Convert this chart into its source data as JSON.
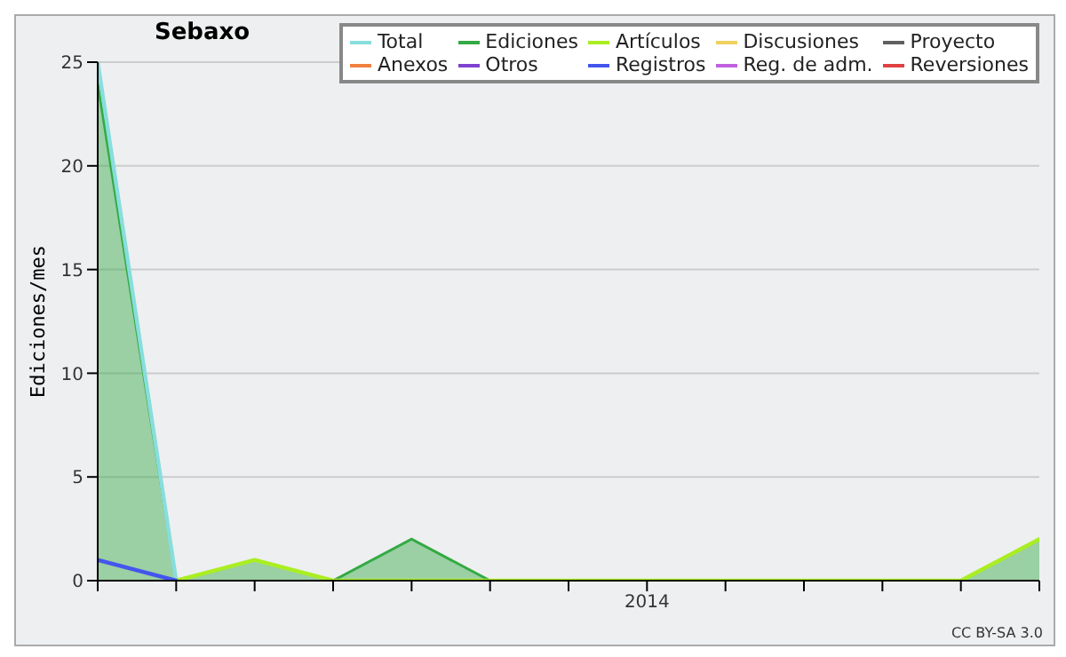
{
  "chart_data": {
    "type": "line",
    "title": "Sebaxo",
    "ylabel": "Ediciones/mes",
    "categories": [
      null,
      null,
      null,
      null,
      null,
      null,
      null,
      "2014",
      null,
      null,
      null,
      null,
      null
    ],
    "series": [
      {
        "name": "Total",
        "color": "#88dddd",
        "values": [
          25,
          0,
          null,
          null,
          null,
          null,
          null,
          null,
          null,
          null,
          null,
          null,
          null
        ]
      },
      {
        "name": "Ediciones",
        "type": "area",
        "color": "#33aa44",
        "values": [
          24,
          0,
          1,
          0,
          2,
          0,
          0,
          0,
          0,
          0,
          0,
          0,
          2
        ]
      },
      {
        "name": "Artículos",
        "color": "#aaee22",
        "values": [
          null,
          0,
          1,
          0,
          0,
          0,
          0,
          0,
          0,
          0,
          0,
          0,
          2
        ]
      },
      {
        "name": "Discusiones",
        "color": "#f0d060",
        "values": [
          null,
          null,
          null,
          null,
          null,
          null,
          null,
          null,
          null,
          null,
          null,
          null,
          null
        ]
      },
      {
        "name": "Proyecto",
        "color": "#606060",
        "values": [
          null,
          null,
          null,
          null,
          null,
          null,
          null,
          null,
          null,
          null,
          null,
          null,
          null
        ]
      },
      {
        "name": "Anexos",
        "color": "#f08040",
        "values": [
          null,
          null,
          null,
          null,
          null,
          null,
          null,
          null,
          null,
          null,
          null,
          null,
          null
        ]
      },
      {
        "name": "Otros",
        "color": "#8040d0",
        "values": [
          null,
          null,
          null,
          null,
          null,
          null,
          null,
          null,
          null,
          null,
          null,
          null,
          null
        ]
      },
      {
        "name": "Registros",
        "color": "#4455ee",
        "values": [
          1,
          0,
          null,
          null,
          null,
          null,
          null,
          null,
          null,
          null,
          null,
          null,
          null
        ]
      },
      {
        "name": "Reg. de adm.",
        "color": "#c060e0",
        "values": [
          null,
          null,
          null,
          null,
          null,
          null,
          null,
          null,
          null,
          null,
          null,
          null,
          null
        ]
      },
      {
        "name": "Reversiones",
        "color": "#e04040",
        "values": [
          null,
          null,
          null,
          null,
          null,
          null,
          null,
          null,
          null,
          null,
          null,
          null,
          null
        ]
      }
    ],
    "ylim": [
      0,
      25
    ],
    "yticks": [
      0,
      5,
      10,
      15,
      20,
      25
    ],
    "grid": "y",
    "legend": "top right",
    "marker": "none",
    "annotations": [
      "CC BY-SA 3.0"
    ]
  }
}
